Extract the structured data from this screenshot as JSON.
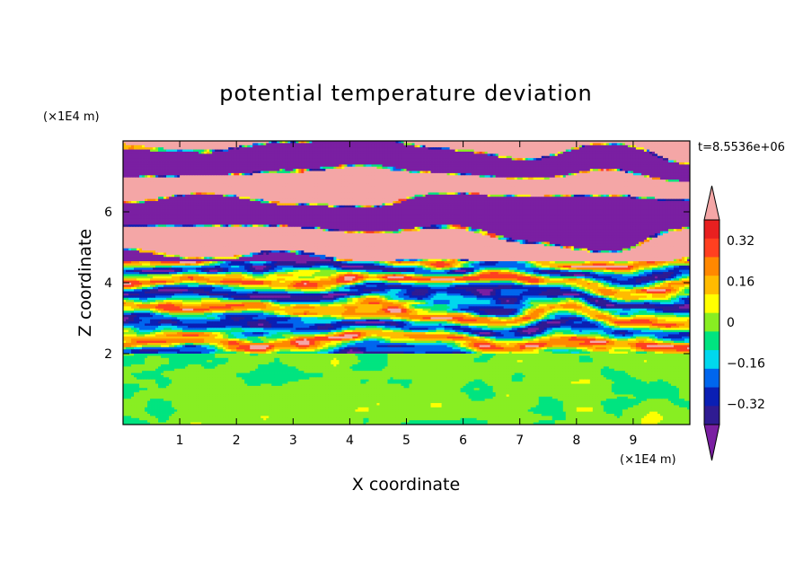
{
  "chart_data": {
    "type": "heatmap",
    "title": "potential temperature deviation",
    "xlabel": "X coordinate",
    "ylabel": "Z coordinate",
    "x_unit": "(×1E4 m)",
    "y_unit": "(×1E4 m)",
    "time_label": "t=8.5536e+06",
    "xlim": [
      0,
      10
    ],
    "ylim": [
      0,
      8
    ],
    "x_ticks": [
      1,
      2,
      3,
      4,
      5,
      6,
      7,
      8,
      9
    ],
    "y_ticks": [
      2,
      4,
      6
    ],
    "colorbar": {
      "levels": [
        -0.48,
        -0.4,
        -0.32,
        -0.24,
        -0.16,
        -0.08,
        0,
        0.08,
        0.16,
        0.24,
        0.32,
        0.4,
        0.48
      ],
      "tick_values": [
        0.32,
        0.16,
        0,
        -0.16,
        -0.32
      ],
      "tick_labels": [
        "0.32",
        "0.16",
        "0",
        "−0.16",
        "−0.32"
      ],
      "colors": [
        "#7a1fa2",
        "#2f1b92",
        "#0a1fb4",
        "#0066ee",
        "#00d8ee",
        "#00e480",
        "#88ee22",
        "#ffff00",
        "#ffbb00",
        "#ff8800",
        "#ff4020",
        "#e82020",
        "#f4a6a6"
      ],
      "extend": "both"
    },
    "field_description_layers": [
      {
        "z_range": [
          0,
          2
        ],
        "dominant": "green / light-green (near 0)"
      },
      {
        "z_range": [
          2,
          4.6
        ],
        "dominant": "mixed banded (−0.3 to +0.3)"
      },
      {
        "z_range": [
          4.6,
          8
        ],
        "dominant": "alternating pink (>0.4) and purple (<−0.4) layers"
      }
    ]
  }
}
